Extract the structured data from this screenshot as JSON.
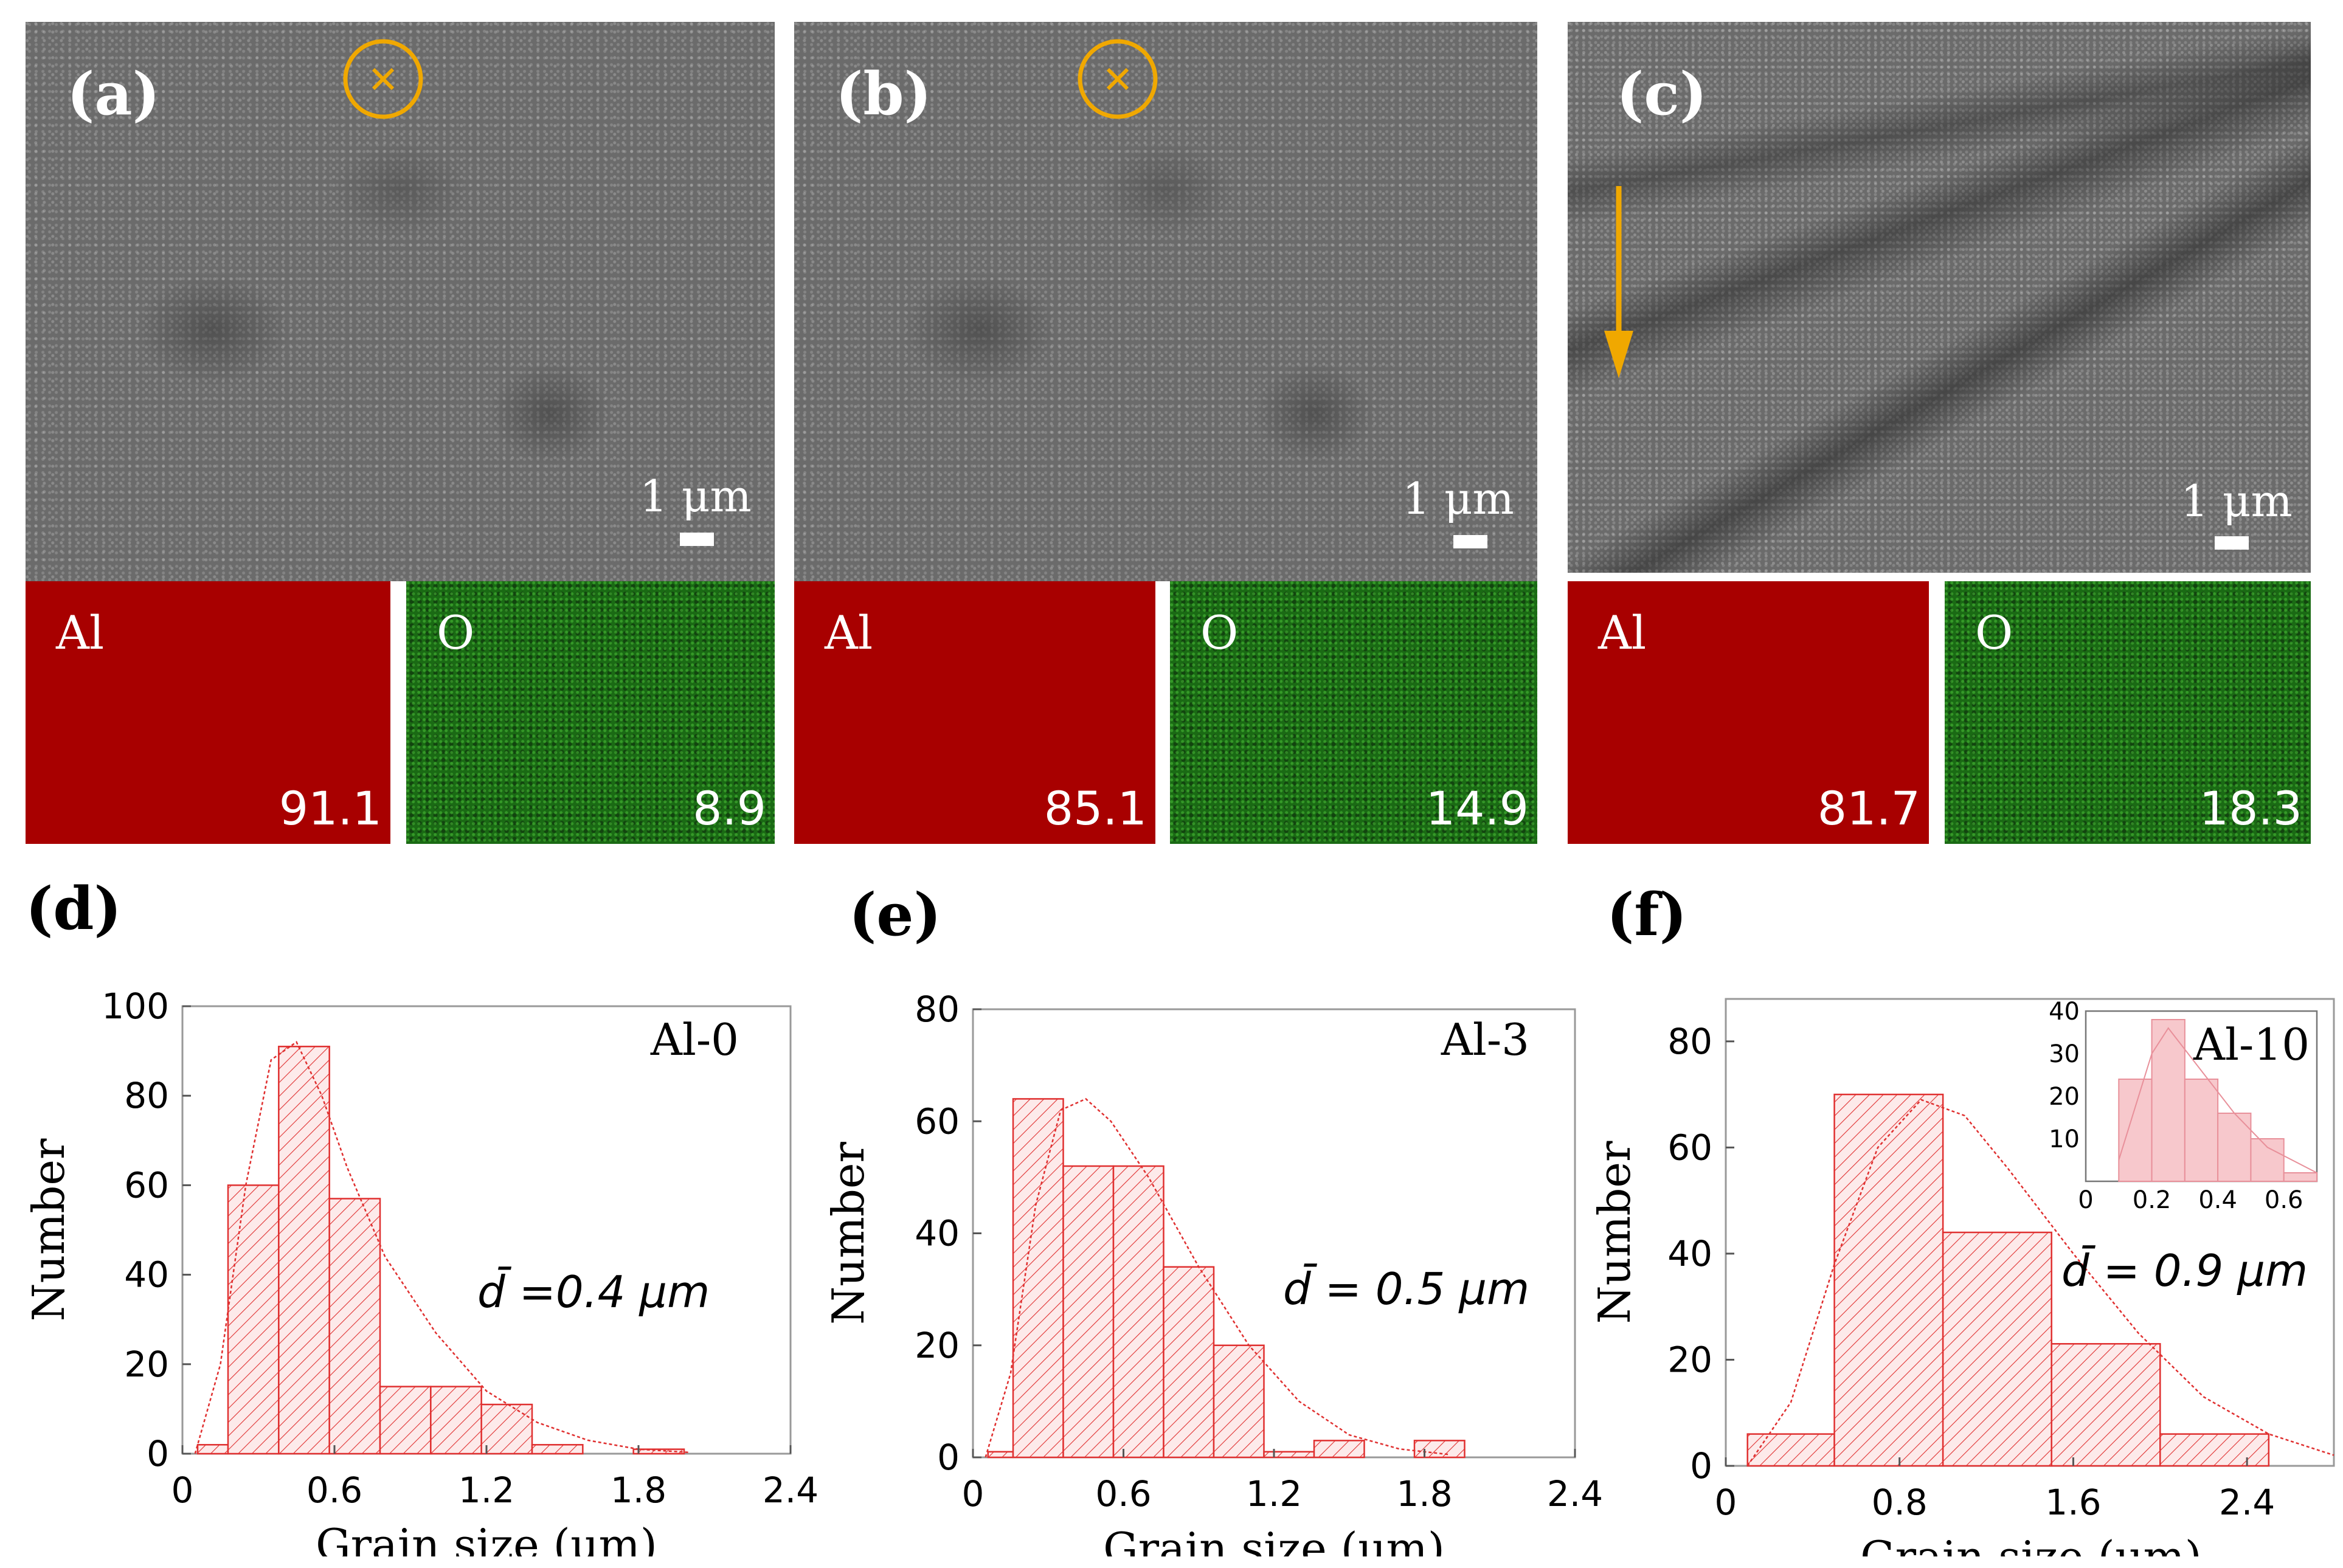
{
  "sem_panels": [
    {
      "label": "(a)",
      "scale": "1 μm",
      "marker": "cross-circle"
    },
    {
      "label": "(b)",
      "scale": "1 μm",
      "marker": "cross-circle"
    },
    {
      "label": "(c)",
      "scale": "1 μm",
      "marker": "arrow-down"
    }
  ],
  "eds_maps": [
    {
      "element": "Al",
      "value": "91.1",
      "color": "#a80000"
    },
    {
      "element": "O",
      "value": "8.9",
      "color": "#1a6a14"
    },
    {
      "element": "Al",
      "value": "85.1",
      "color": "#a80000"
    },
    {
      "element": "O",
      "value": "14.9",
      "color": "#1a6a14"
    },
    {
      "element": "Al",
      "value": "81.7",
      "color": "#a80000"
    },
    {
      "element": "O",
      "value": "18.3",
      "color": "#1a6a14"
    }
  ],
  "accent_color": "#f0a800",
  "hist_color": "#e03030",
  "chart_data": [
    {
      "type": "bar",
      "panel": "(d)",
      "series_label": "Al-0",
      "annotation": "d̄ =0.4 μm",
      "xlabel": "Grain size (μm)",
      "ylabel": "Number",
      "xlim": [
        0,
        2.4
      ],
      "ylim": [
        0,
        100
      ],
      "xticks": [
        "0",
        "0.6",
        "1.2",
        "1.8",
        "2.4"
      ],
      "yticks": [
        "0",
        "20",
        "40",
        "60",
        "80",
        "100"
      ],
      "bins": [
        [
          0.06,
          0.18,
          2
        ],
        [
          0.18,
          0.38,
          60
        ],
        [
          0.38,
          0.58,
          91
        ],
        [
          0.58,
          0.78,
          57
        ],
        [
          0.78,
          0.98,
          15
        ],
        [
          0.98,
          1.18,
          15
        ],
        [
          1.18,
          1.38,
          11
        ],
        [
          1.38,
          1.58,
          2
        ],
        [
          1.78,
          1.98,
          1
        ]
      ],
      "fit": [
        [
          0.05,
          0
        ],
        [
          0.15,
          20
        ],
        [
          0.25,
          60
        ],
        [
          0.35,
          88
        ],
        [
          0.45,
          92
        ],
        [
          0.55,
          80
        ],
        [
          0.65,
          64
        ],
        [
          0.8,
          44
        ],
        [
          1.0,
          27
        ],
        [
          1.2,
          14
        ],
        [
          1.4,
          7
        ],
        [
          1.6,
          3
        ],
        [
          1.8,
          1
        ],
        [
          2.0,
          0.3
        ]
      ]
    },
    {
      "type": "bar",
      "panel": "(e)",
      "series_label": "Al-3",
      "annotation": "d̄ = 0.5 μm",
      "xlabel": "Grain size (μm)",
      "ylabel": "Number",
      "xlim": [
        0,
        2.4
      ],
      "ylim": [
        0,
        80
      ],
      "xticks": [
        "0",
        "0.6",
        "1.2",
        "1.8",
        "2.4"
      ],
      "yticks": [
        "0",
        "20",
        "40",
        "60",
        "80"
      ],
      "bins": [
        [
          0.06,
          0.16,
          1
        ],
        [
          0.16,
          0.36,
          64
        ],
        [
          0.36,
          0.56,
          52
        ],
        [
          0.56,
          0.76,
          52
        ],
        [
          0.76,
          0.96,
          34
        ],
        [
          0.96,
          1.16,
          20
        ],
        [
          1.16,
          1.36,
          1
        ],
        [
          1.36,
          1.56,
          3
        ],
        [
          1.76,
          1.96,
          3
        ]
      ],
      "fit": [
        [
          0.05,
          0
        ],
        [
          0.15,
          15
        ],
        [
          0.25,
          45
        ],
        [
          0.35,
          62
        ],
        [
          0.45,
          64
        ],
        [
          0.55,
          60
        ],
        [
          0.7,
          50
        ],
        [
          0.9,
          34
        ],
        [
          1.1,
          20
        ],
        [
          1.3,
          10
        ],
        [
          1.5,
          4
        ],
        [
          1.7,
          1.5
        ],
        [
          1.9,
          0.5
        ]
      ]
    },
    {
      "type": "bar",
      "panel": "(f)",
      "series_label": "Al-10",
      "annotation": "d̄ = 0.9 μm",
      "xlabel": "Grain size (μm)",
      "ylabel": "Number",
      "xlim": [
        0,
        2.8
      ],
      "ylim": [
        0,
        88
      ],
      "xticks": [
        "0",
        "0.8",
        "1.6",
        "2.4"
      ],
      "yticks": [
        "0",
        "20",
        "40",
        "60",
        "80"
      ],
      "bins": [
        [
          0.1,
          0.5,
          6
        ],
        [
          0.5,
          1.0,
          70
        ],
        [
          1.0,
          1.5,
          44
        ],
        [
          1.5,
          2.0,
          23
        ],
        [
          2.0,
          2.5,
          6
        ]
      ],
      "fit": [
        [
          0.1,
          0
        ],
        [
          0.3,
          12
        ],
        [
          0.5,
          38
        ],
        [
          0.7,
          60
        ],
        [
          0.9,
          69
        ],
        [
          1.1,
          66
        ],
        [
          1.3,
          56
        ],
        [
          1.6,
          40
        ],
        [
          1.9,
          25
        ],
        [
          2.2,
          13
        ],
        [
          2.5,
          6
        ],
        [
          2.8,
          2
        ]
      ],
      "inset": {
        "xlim": [
          0,
          0.7
        ],
        "ylim": [
          0,
          40
        ],
        "xticks": [
          "0",
          "0.2",
          "0.4",
          "0.6"
        ],
        "yticks": [
          "10",
          "20",
          "30",
          "40"
        ],
        "bins": [
          [
            0.1,
            0.2,
            24
          ],
          [
            0.2,
            0.3,
            38
          ],
          [
            0.3,
            0.4,
            24
          ],
          [
            0.4,
            0.5,
            16
          ],
          [
            0.5,
            0.6,
            10
          ],
          [
            0.6,
            0.7,
            2
          ]
        ]
      }
    }
  ]
}
